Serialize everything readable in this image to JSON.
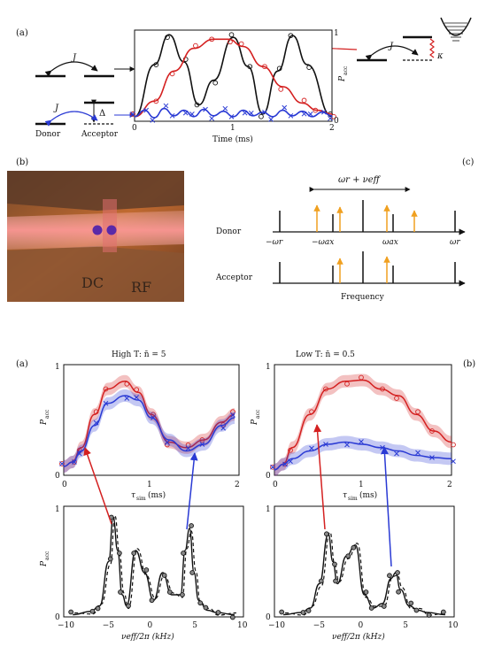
{
  "top": {
    "panel_a": {
      "label": "(a)",
      "J1": "J",
      "J2": "J",
      "J3": "J",
      "delta": "Δ",
      "kappa": "κ",
      "donor": "Donor",
      "acceptor": "Acceptor",
      "xlabel": "Time (ms)",
      "ylabel": "P",
      "ylabel_sub": "acc",
      "xticks": [
        "0",
        "1",
        "2"
      ],
      "yticks": [
        "0",
        "1"
      ]
    },
    "panel_b": {
      "label": "(b)",
      "dc": "DC",
      "rf": "RF"
    },
    "panel_c": {
      "label": "(c)",
      "top_label": "ωr + νeff",
      "donor": "Donor",
      "acceptor": "Acceptor",
      "xlabel": "Frequency",
      "ticks": [
        "−ωr",
        "−ωax",
        "ωax",
        "ωr"
      ]
    }
  },
  "bottom": {
    "left_label": "(a)",
    "right_label": "(b)",
    "left_title": "High T: n̄ = 5",
    "right_title": "Low T: n̄ = 0.5",
    "ylabel": "P",
    "ylabel_sub": "acc",
    "xlabel_time": "τ",
    "xlabel_time_sub": "sim",
    "xlabel_time_unit": "(ms)",
    "xlabel_freq": "νeff/2π (kHz)",
    "time_ticks": [
      "0",
      "1",
      "2"
    ],
    "freq_ticks": [
      "−10",
      "−5",
      "0",
      "5",
      "10"
    ],
    "yticks": [
      "0",
      "1"
    ]
  },
  "chart_data": [
    {
      "type": "line",
      "title": "",
      "xlabel": "Time (ms)",
      "ylabel": "Pacc",
      "xlim": [
        0,
        2
      ],
      "ylim": [
        0,
        1
      ],
      "series": [
        {
          "color": "#111111",
          "x": [
            0.0,
            0.2,
            0.35,
            0.5,
            0.65,
            0.8,
            1.0,
            1.15,
            1.3,
            1.45,
            1.6,
            1.75,
            2.0
          ],
          "y": [
            0.05,
            0.62,
            0.95,
            0.65,
            0.18,
            0.45,
            0.92,
            0.6,
            0.08,
            0.55,
            0.94,
            0.62,
            0.05
          ]
        },
        {
          "color": "#d42020",
          "x": [
            0.0,
            0.2,
            0.4,
            0.6,
            0.8,
            0.95,
            1.1,
            1.3,
            1.5,
            1.7,
            1.85,
            2.0
          ],
          "y": [
            0.05,
            0.22,
            0.55,
            0.8,
            0.9,
            0.9,
            0.82,
            0.6,
            0.38,
            0.2,
            0.12,
            0.08
          ]
        },
        {
          "color": "#2a3ad4",
          "x": [
            0.0,
            0.1,
            0.2,
            0.3,
            0.4,
            0.5,
            0.6,
            0.7,
            0.8,
            0.9,
            1.0,
            1.1,
            1.2,
            1.3,
            1.4,
            1.5,
            1.6,
            1.7,
            1.8,
            1.9,
            2.0
          ],
          "y": [
            0.05,
            0.12,
            0.04,
            0.14,
            0.06,
            0.12,
            0.05,
            0.13,
            0.06,
            0.11,
            0.05,
            0.12,
            0.06,
            0.1,
            0.05,
            0.12,
            0.06,
            0.11,
            0.05,
            0.1,
            0.06
          ]
        }
      ]
    },
    {
      "type": "line",
      "title": "High T: n̄ = 5",
      "xlabel": "τsim (ms)",
      "ylabel": "Pacc",
      "xlim": [
        0,
        2
      ],
      "ylim": [
        0,
        1
      ],
      "series": [
        {
          "color": "#d42020",
          "x": [
            0.0,
            0.1,
            0.2,
            0.35,
            0.5,
            0.7,
            0.85,
            1.0,
            1.2,
            1.4,
            1.6,
            1.8,
            1.95
          ],
          "y": [
            0.08,
            0.12,
            0.25,
            0.55,
            0.78,
            0.85,
            0.75,
            0.55,
            0.3,
            0.25,
            0.32,
            0.48,
            0.55
          ]
        },
        {
          "color": "#2a3ad4",
          "x": [
            0.0,
            0.1,
            0.2,
            0.35,
            0.5,
            0.7,
            0.85,
            1.0,
            1.2,
            1.4,
            1.6,
            1.8,
            1.95
          ],
          "y": [
            0.08,
            0.12,
            0.22,
            0.45,
            0.65,
            0.72,
            0.68,
            0.52,
            0.32,
            0.22,
            0.28,
            0.45,
            0.52
          ]
        }
      ]
    },
    {
      "type": "line",
      "title": "Low T: n̄ = 0.5",
      "xlabel": "τsim (ms)",
      "ylabel": "Pacc",
      "xlim": [
        0,
        2
      ],
      "ylim": [
        0,
        1
      ],
      "series": [
        {
          "color": "#d42020",
          "x": [
            0.0,
            0.1,
            0.2,
            0.4,
            0.6,
            0.8,
            1.0,
            1.2,
            1.4,
            1.6,
            1.8,
            2.0
          ],
          "y": [
            0.05,
            0.1,
            0.25,
            0.55,
            0.78,
            0.85,
            0.86,
            0.78,
            0.72,
            0.55,
            0.4,
            0.3
          ]
        },
        {
          "color": "#2a3ad4",
          "x": [
            0.0,
            0.1,
            0.2,
            0.4,
            0.6,
            0.8,
            1.0,
            1.2,
            1.4,
            1.6,
            1.8,
            2.0
          ],
          "y": [
            0.05,
            0.1,
            0.15,
            0.22,
            0.28,
            0.3,
            0.28,
            0.25,
            0.22,
            0.18,
            0.16,
            0.15
          ]
        }
      ]
    },
    {
      "type": "line",
      "title": "",
      "xlabel": "νeff/2π (kHz)",
      "ylabel": "Pacc",
      "xlim": [
        -10,
        10
      ],
      "ylim": [
        0,
        1
      ],
      "series": [
        {
          "color": "#111111",
          "x": [
            -9,
            -7,
            -6,
            -5,
            -4.5,
            -4,
            -3.5,
            -3,
            -2,
            -1,
            0,
            1,
            2,
            3,
            3.5,
            4,
            4.5,
            5,
            6,
            7,
            9
          ],
          "y": [
            0.02,
            0.05,
            0.1,
            0.5,
            0.9,
            0.6,
            0.2,
            0.1,
            0.6,
            0.4,
            0.15,
            0.4,
            0.2,
            0.2,
            0.6,
            0.8,
            0.4,
            0.15,
            0.06,
            0.04,
            0.02
          ]
        }
      ]
    },
    {
      "type": "line",
      "title": "",
      "xlabel": "νeff/2π (kHz)",
      "ylabel": "Pacc",
      "xlim": [
        -10,
        10
      ],
      "ylim": [
        0,
        1
      ],
      "series": [
        {
          "color": "#111111",
          "x": [
            -9,
            -7,
            -6,
            -5,
            -4,
            -3.5,
            -3,
            -2,
            -1,
            0,
            1,
            2,
            3,
            3.5,
            4,
            5,
            6,
            7,
            9
          ],
          "y": [
            0.02,
            0.04,
            0.08,
            0.3,
            0.75,
            0.5,
            0.3,
            0.55,
            0.65,
            0.2,
            0.08,
            0.12,
            0.35,
            0.4,
            0.25,
            0.1,
            0.06,
            0.04,
            0.02
          ]
        }
      ]
    }
  ]
}
